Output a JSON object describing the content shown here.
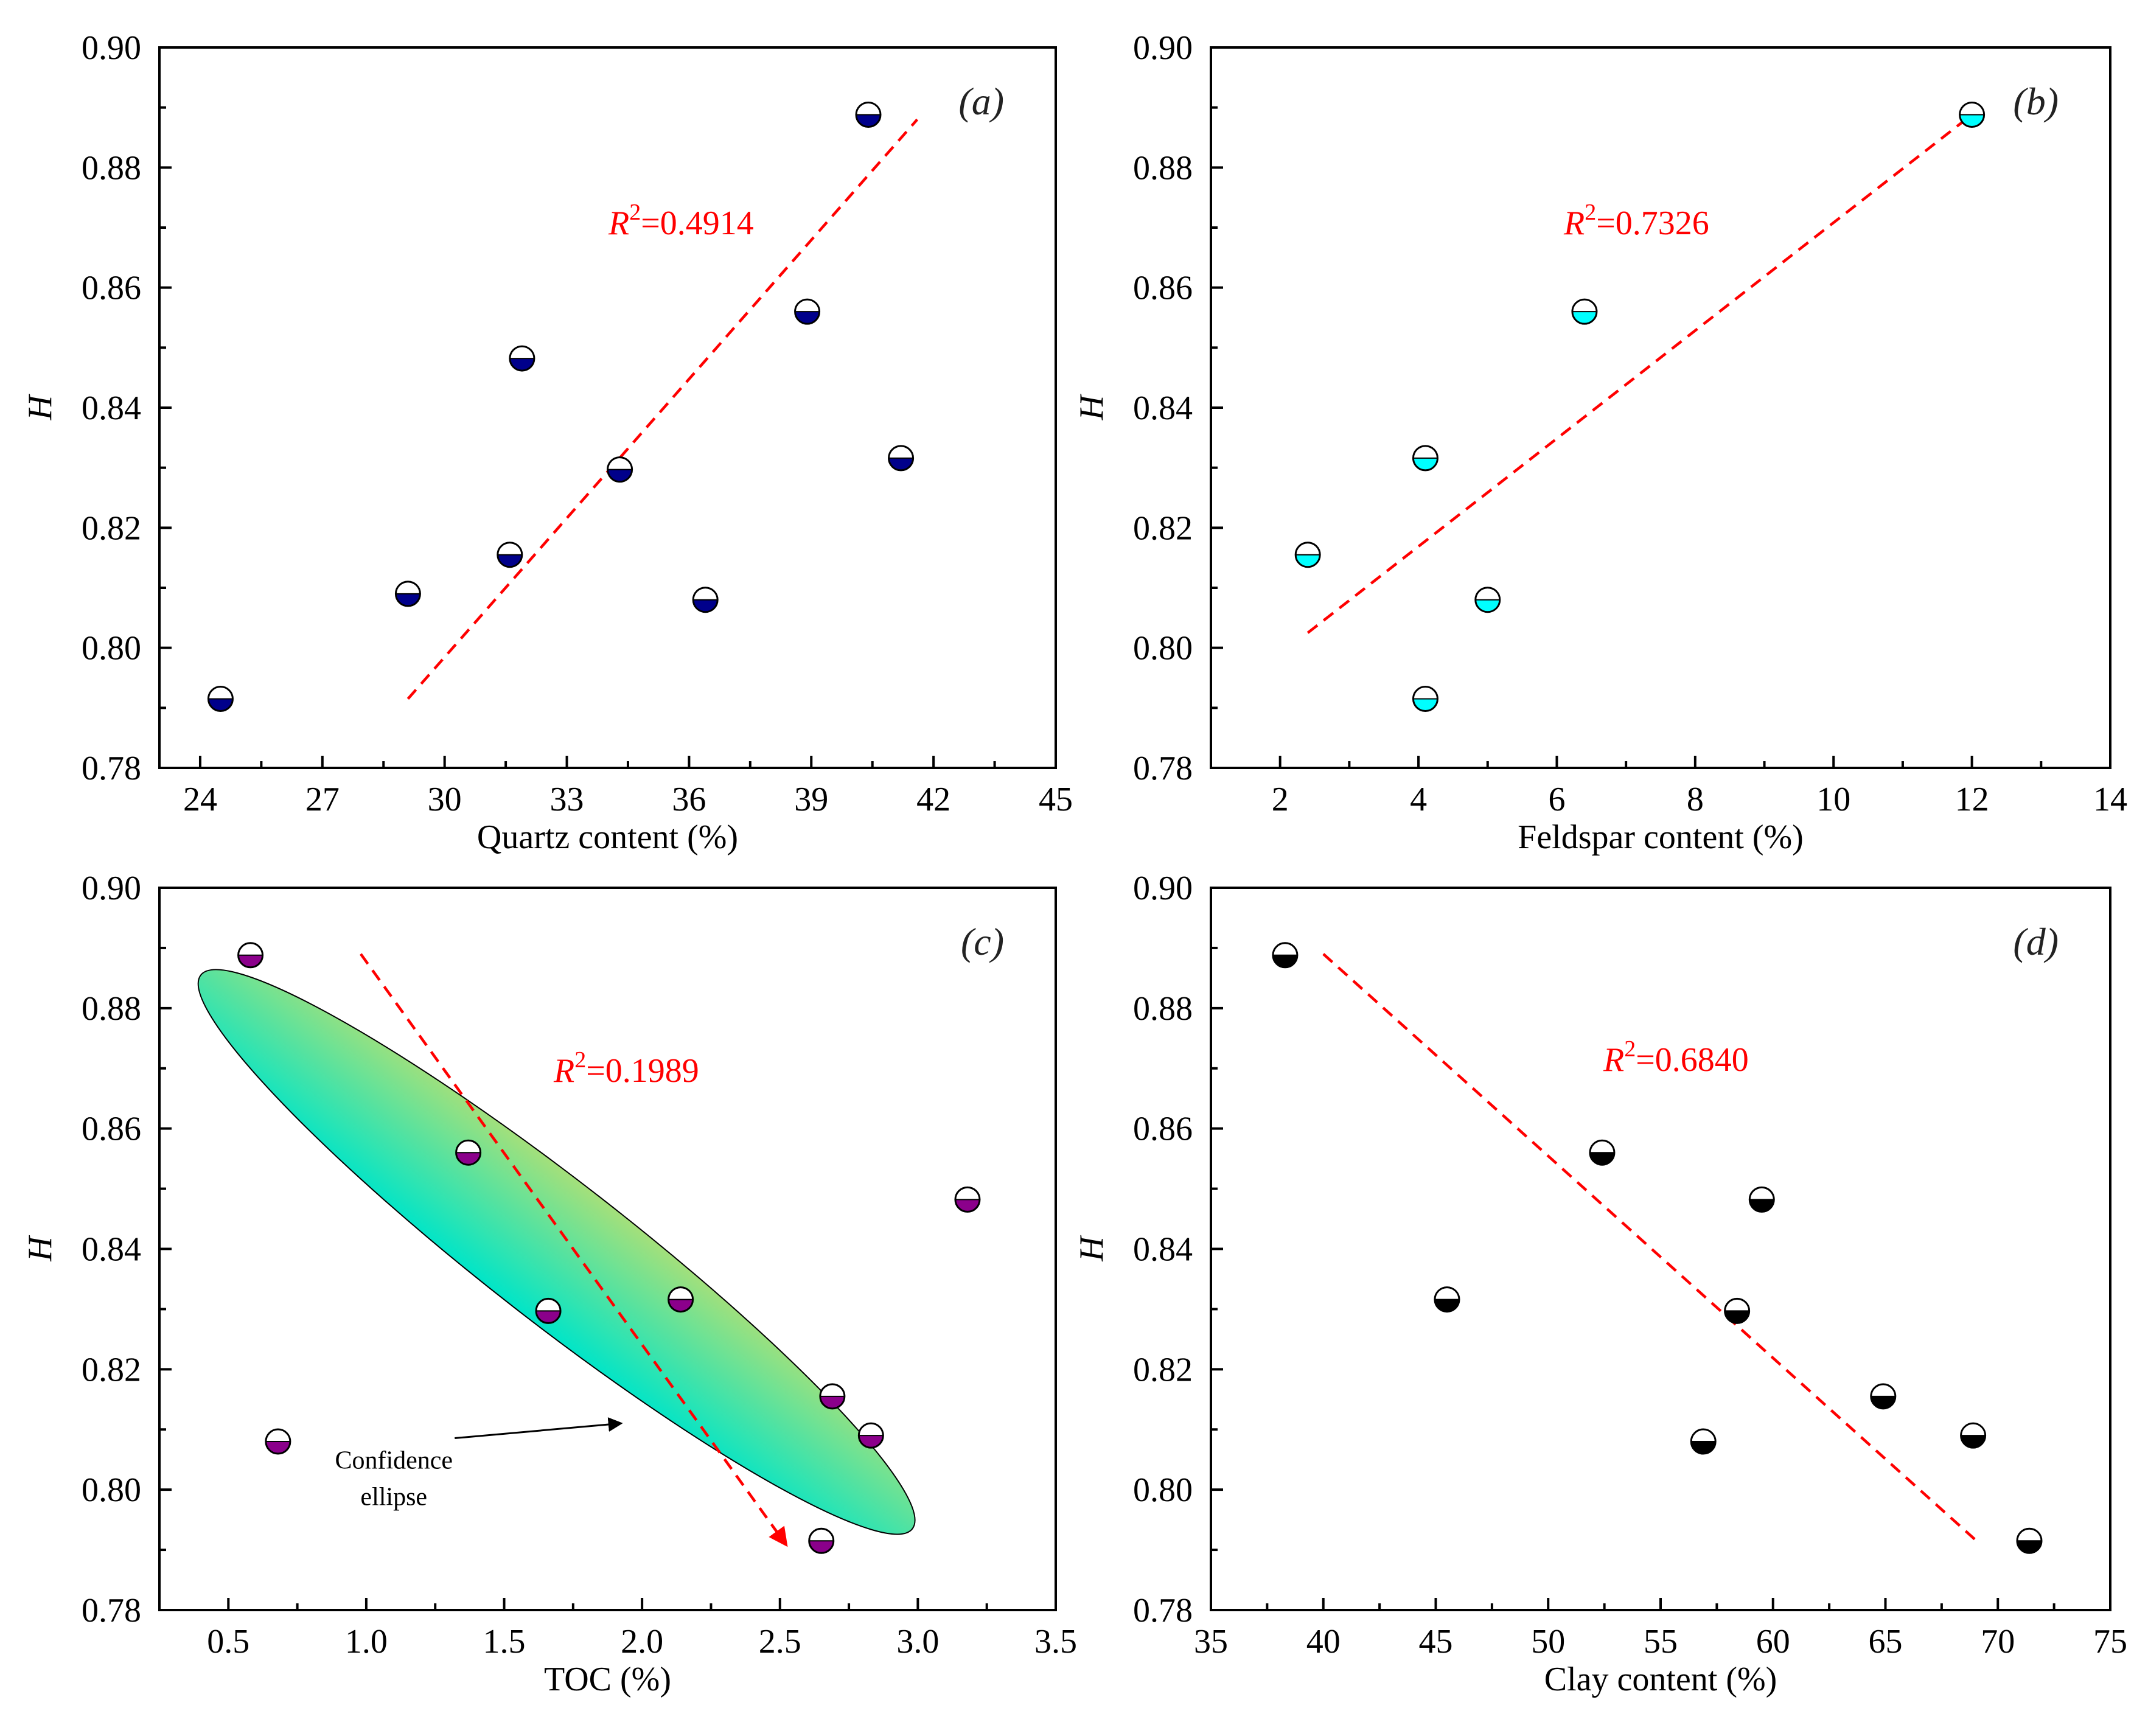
{
  "chart_data": [
    {
      "type": "scatter",
      "panel_label": "(a)",
      "xlabel": "Quartz content (%)",
      "ylabel": "H",
      "xlim": [
        23,
        45
      ],
      "ylim": [
        0.78,
        0.9
      ],
      "xticks": [
        "24",
        "27",
        "30",
        "33",
        "36",
        "39",
        "42",
        "45"
      ],
      "xtick_values": [
        24,
        27,
        30,
        33,
        36,
        39,
        42,
        45
      ],
      "yticks": [
        "0.78",
        "0.80",
        "0.82",
        "0.84",
        "0.86",
        "0.88",
        "0.90"
      ],
      "ytick_values": [
        0.78,
        0.8,
        0.82,
        0.84,
        0.86,
        0.88,
        0.9
      ],
      "marker_color": "#00008b",
      "points": [
        {
          "x": 24.5,
          "y": 0.7915
        },
        {
          "x": 29.1,
          "y": 0.809
        },
        {
          "x": 31.6,
          "y": 0.8155
        },
        {
          "x": 31.9,
          "y": 0.8482
        },
        {
          "x": 34.3,
          "y": 0.8297
        },
        {
          "x": 36.4,
          "y": 0.808
        },
        {
          "x": 38.9,
          "y": 0.856
        },
        {
          "x": 40.4,
          "y": 0.8888
        },
        {
          "x": 41.2,
          "y": 0.8316
        }
      ],
      "trend_line": {
        "x": [
          29.1,
          41.6
        ],
        "y": [
          0.7915,
          0.888
        ]
      },
      "r2": {
        "symbol": "R",
        "sup": "2",
        "value": "=0.4914"
      }
    },
    {
      "type": "scatter",
      "panel_label": "(b)",
      "xlabel": "Feldspar content (%)",
      "ylabel": "H",
      "xlim": [
        1,
        14
      ],
      "ylim": [
        0.78,
        0.9
      ],
      "xticks": [
        "2",
        "4",
        "6",
        "8",
        "10",
        "12",
        "14"
      ],
      "xtick_values": [
        2,
        4,
        6,
        8,
        10,
        12,
        14
      ],
      "yticks": [
        "0.78",
        "0.80",
        "0.82",
        "0.84",
        "0.86",
        "0.88",
        "0.90"
      ],
      "ytick_values": [
        0.78,
        0.8,
        0.82,
        0.84,
        0.86,
        0.88,
        0.9
      ],
      "marker_color": "#00ffff",
      "points": [
        {
          "x": 2.4,
          "y": 0.8155
        },
        {
          "x": 4.1,
          "y": 0.8316
        },
        {
          "x": 4.1,
          "y": 0.7915
        },
        {
          "x": 5.0,
          "y": 0.808
        },
        {
          "x": 6.4,
          "y": 0.856
        },
        {
          "x": 12.0,
          "y": 0.8888
        }
      ],
      "trend_line": {
        "x": [
          2.4,
          12.0
        ],
        "y": [
          0.8025,
          0.8888
        ]
      },
      "r2": {
        "symbol": "R",
        "sup": "2",
        "value": "=0.7326"
      }
    },
    {
      "type": "scatter",
      "panel_label": "(c)",
      "xlabel": "TOC (%)",
      "ylabel": "H",
      "xlim": [
        0.25,
        3.5
      ],
      "ylim": [
        0.78,
        0.9
      ],
      "xticks": [
        "0.5",
        "1.0",
        "1.5",
        "2.0",
        "2.5",
        "3.0",
        "3.5"
      ],
      "xtick_values": [
        0.5,
        1.0,
        1.5,
        2.0,
        2.5,
        3.0,
        3.5
      ],
      "yticks": [
        "0.78",
        "0.80",
        "0.82",
        "0.84",
        "0.86",
        "0.88",
        "0.90"
      ],
      "ytick_values": [
        0.78,
        0.8,
        0.82,
        0.84,
        0.86,
        0.88,
        0.9
      ],
      "marker_color": "#8b008b",
      "points": [
        {
          "x": 0.58,
          "y": 0.8888
        },
        {
          "x": 0.68,
          "y": 0.808
        },
        {
          "x": 1.37,
          "y": 0.856
        },
        {
          "x": 1.66,
          "y": 0.8297
        },
        {
          "x": 2.14,
          "y": 0.8316
        },
        {
          "x": 2.65,
          "y": 0.7915
        },
        {
          "x": 2.69,
          "y": 0.8155
        },
        {
          "x": 2.83,
          "y": 0.809
        },
        {
          "x": 3.18,
          "y": 0.8482
        }
      ],
      "trend_line": {
        "x": [
          0.98,
          2.52
        ],
        "y": [
          0.889,
          0.791
        ],
        "arrow": true
      },
      "ellipse": {
        "from_x": 0.4,
        "from_y": 0.8855,
        "to_x": 2.98,
        "to_y": 0.7935,
        "minor_axis_fraction": 0.155,
        "color_top": "#a5e07a",
        "color_bottom": "#00e5c8"
      },
      "annotation": {
        "lines": [
          "Confidence",
          "ellipse"
        ],
        "points_to": {
          "x": 1.92,
          "y": 0.811
        },
        "text_at": {
          "x": 1.1,
          "y": 0.8035
        }
      },
      "r2": {
        "symbol": "R",
        "sup": "2",
        "value": "=0.1989"
      }
    },
    {
      "type": "scatter",
      "panel_label": "(d)",
      "xlabel": "Clay content (%)",
      "ylabel": "H",
      "xlim": [
        35,
        75
      ],
      "ylim": [
        0.78,
        0.9
      ],
      "xticks": [
        "35",
        "40",
        "45",
        "50",
        "55",
        "60",
        "65",
        "70",
        "75"
      ],
      "xtick_values": [
        35,
        40,
        45,
        50,
        55,
        60,
        65,
        70,
        75
      ],
      "yticks": [
        "0.78",
        "0.80",
        "0.82",
        "0.84",
        "0.86",
        "0.88",
        "0.90"
      ],
      "ytick_values": [
        0.78,
        0.8,
        0.82,
        0.84,
        0.86,
        0.88,
        0.9
      ],
      "marker_color": "#000000",
      "points": [
        {
          "x": 38.3,
          "y": 0.8888
        },
        {
          "x": 45.5,
          "y": 0.8316
        },
        {
          "x": 52.4,
          "y": 0.856
        },
        {
          "x": 56.9,
          "y": 0.808
        },
        {
          "x": 58.4,
          "y": 0.8297
        },
        {
          "x": 59.5,
          "y": 0.8482
        },
        {
          "x": 64.9,
          "y": 0.8155
        },
        {
          "x": 68.9,
          "y": 0.809
        },
        {
          "x": 71.4,
          "y": 0.7915
        }
      ],
      "trend_line": {
        "x": [
          40.0,
          69.2
        ],
        "y": [
          0.889,
          0.791
        ]
      },
      "r2": {
        "symbol": "R",
        "sup": "2",
        "value": "=0.6840"
      }
    }
  ]
}
